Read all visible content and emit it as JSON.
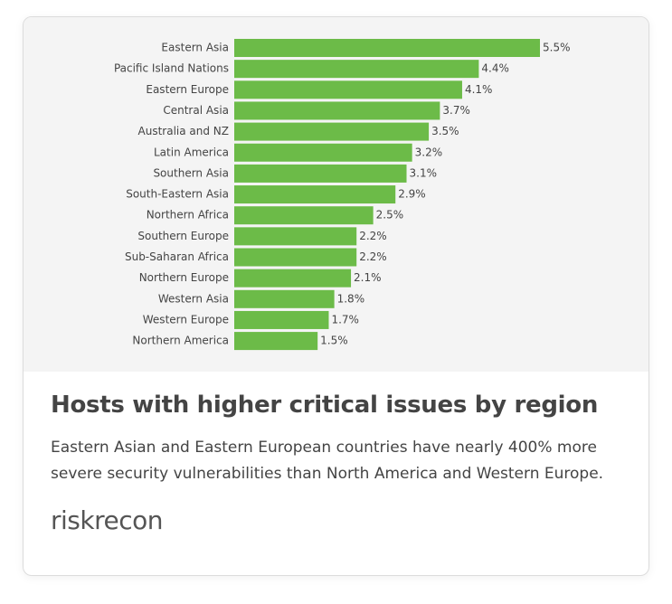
{
  "chart_data": {
    "type": "bar",
    "orientation": "horizontal",
    "color": "#6cbb48",
    "categories": [
      "Eastern Asia",
      "Pacific Island Nations",
      "Eastern Europe",
      "Central Asia",
      "Australia and NZ",
      "Latin America",
      "Southern Asia",
      "South-Eastern Asia",
      "Northern Africa",
      "Southern Europe",
      "Sub-Saharan Africa",
      "Northern Europe",
      "Western Asia",
      "Western Europe",
      "Northern America"
    ],
    "values": [
      5.5,
      4.4,
      4.1,
      3.7,
      3.5,
      3.2,
      3.1,
      2.9,
      2.5,
      2.2,
      2.2,
      2.1,
      1.8,
      1.7,
      1.5
    ],
    "value_labels": [
      "5.5%",
      "4.4%",
      "4.1%",
      "3.7%",
      "3.5%",
      "3.2%",
      "3.1%",
      "2.9%",
      "2.5%",
      "2.2%",
      "2.2%",
      "2.1%",
      "1.8%",
      "1.7%",
      "1.5%"
    ],
    "title": "Hosts with higher critical issues by region",
    "subtitle": "Eastern Asian and Eastern European countries have nearly 400% more severe security vulnerabilities than North America and Western Europe."
  },
  "footer": {
    "logo": "riskrecon"
  }
}
